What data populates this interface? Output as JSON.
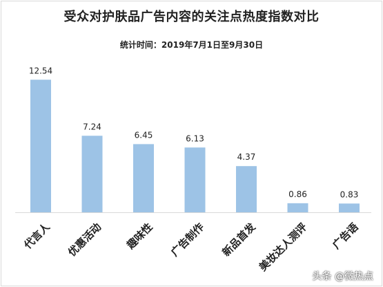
{
  "chart_data": {
    "type": "bar",
    "title": "受众对护肤品广告内容的关注点热度指数对比",
    "subtitle": "统计时间：2019年7月1日至9月30日",
    "categories": [
      "代言人",
      "优惠活动",
      "趣味性",
      "广告制作",
      "新品首发",
      "美妆达人测评",
      "广告语"
    ],
    "values": [
      12.54,
      7.24,
      6.45,
      6.13,
      4.37,
      0.86,
      0.83
    ],
    "value_labels": [
      "12.54",
      "7.24",
      "6.45",
      "6.13",
      "4.37",
      "0.86",
      "0.83"
    ],
    "xlabel": "",
    "ylabel": "",
    "ylim": [
      0,
      13.8
    ],
    "grid": false,
    "legend": "none",
    "bar_color": "#9dc3e6"
  },
  "watermark": "头条 @微热点"
}
